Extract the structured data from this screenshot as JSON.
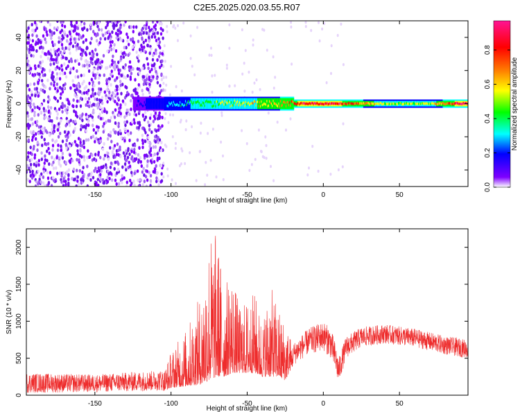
{
  "title": "C2E5.2025.020.03.55.R07",
  "colors": {
    "snr_line": "#ee2c2c",
    "colorbar": [
      "#ffffff",
      "#7f00ff",
      "#0000ff",
      "#00ffff",
      "#00ff00",
      "#ffff00",
      "#ff7f00",
      "#ff0000",
      "#ff1493"
    ]
  },
  "chart_data": [
    {
      "type": "heatmap",
      "xlabel": "Height of straight line (km)",
      "ylabel": "Frequency (Hz)",
      "xlim": [
        -195,
        95
      ],
      "ylim": [
        -50,
        50
      ],
      "xticks": [
        -150,
        -100,
        -50,
        0,
        50
      ],
      "yticks": [
        -40,
        -20,
        0,
        20,
        40
      ],
      "noise_region_x": [
        -195,
        -105
      ],
      "signal_trace": [
        {
          "x": -125,
          "amplitude": 0.05
        },
        {
          "x": -105,
          "amplitude": 0.2
        },
        {
          "x": -90,
          "amplitude": 0.35
        },
        {
          "x": -70,
          "amplitude": 0.45
        },
        {
          "x": -50,
          "amplitude": 0.55
        },
        {
          "x": -30,
          "amplitude": 0.65
        },
        {
          "x": -15,
          "amplitude": 0.85
        },
        {
          "x": 0,
          "amplitude": 0.9
        },
        {
          "x": 15,
          "amplitude": 0.8
        },
        {
          "x": 40,
          "amplitude": 0.5
        },
        {
          "x": 70,
          "amplitude": 0.5
        },
        {
          "x": 90,
          "amplitude": 0.9
        }
      ],
      "colorbar": {
        "label": "Normalized spectral amplitude",
        "range": [
          0,
          0.97
        ],
        "ticks": [
          "0.0",
          "0.2",
          "0.4",
          "0.6",
          "0.8"
        ]
      }
    },
    {
      "type": "line",
      "xlabel": "Height of straight line (km)",
      "ylabel": "SNR (10 * v/v)",
      "xlim": [
        -195,
        95
      ],
      "ylim": [
        0,
        2250
      ],
      "xticks": [
        -150,
        -100,
        -50,
        0,
        50
      ],
      "yticks": [
        0,
        500,
        1000,
        1500,
        2000
      ],
      "series": [
        {
          "envelope": [
            {
              "x": -195,
              "low": 30,
              "high": 300
            },
            {
              "x": -150,
              "low": 40,
              "high": 280
            },
            {
              "x": -105,
              "low": 60,
              "high": 340
            },
            {
              "x": -100,
              "low": 100,
              "high": 600
            },
            {
              "x": -90,
              "low": 120,
              "high": 900
            },
            {
              "x": -80,
              "low": 150,
              "high": 1400
            },
            {
              "x": -75,
              "low": 200,
              "high": 2200
            },
            {
              "x": -70,
              "low": 250,
              "high": 2220
            },
            {
              "x": -65,
              "low": 250,
              "high": 1500
            },
            {
              "x": -60,
              "low": 300,
              "high": 1700
            },
            {
              "x": -55,
              "low": 300,
              "high": 1200
            },
            {
              "x": -50,
              "low": 300,
              "high": 1300
            },
            {
              "x": -45,
              "low": 300,
              "high": 1400
            },
            {
              "x": -40,
              "low": 250,
              "high": 1000
            },
            {
              "x": -35,
              "low": 250,
              "high": 1500
            },
            {
              "x": -30,
              "low": 250,
              "high": 1200
            },
            {
              "x": -25,
              "low": 200,
              "high": 1000
            },
            {
              "x": -20,
              "low": 400,
              "high": 700
            },
            {
              "x": -10,
              "low": 550,
              "high": 900
            },
            {
              "x": 0,
              "low": 600,
              "high": 1000
            },
            {
              "x": 5,
              "low": 500,
              "high": 900
            },
            {
              "x": 8,
              "low": 300,
              "high": 700
            },
            {
              "x": 10,
              "low": 150,
              "high": 500
            },
            {
              "x": 15,
              "low": 500,
              "high": 800
            },
            {
              "x": 25,
              "low": 650,
              "high": 920
            },
            {
              "x": 40,
              "low": 700,
              "high": 960
            },
            {
              "x": 60,
              "low": 650,
              "high": 900
            },
            {
              "x": 80,
              "low": 550,
              "high": 800
            },
            {
              "x": 95,
              "low": 500,
              "high": 750
            }
          ]
        }
      ]
    }
  ]
}
